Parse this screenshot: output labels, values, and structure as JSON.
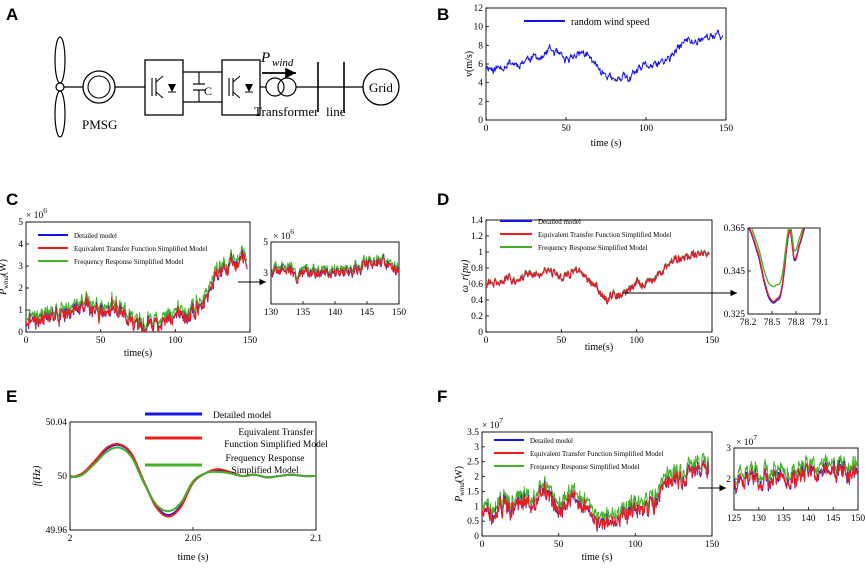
{
  "figure": {
    "colors": {
      "blue": "#1414e6",
      "red": "#ee1c1c",
      "green": "#44b02a",
      "black": "#000000"
    }
  },
  "panel_a": {
    "label": "A",
    "generator_label": "PMSG",
    "capacitor_label": "C",
    "power_symbol": "P",
    "power_subscript": "wind",
    "transformer_label": "Transformer",
    "line_label": "line",
    "grid_label": "Grid"
  },
  "chart_data": [
    {
      "id": "B",
      "label": "B",
      "type": "line",
      "title": "",
      "xlabel": "time (s)",
      "ylabel": "v(m/s)",
      "xlim": [
        0,
        150
      ],
      "ylim": [
        0,
        12
      ],
      "xticks": [
        "0",
        "50",
        "100",
        "150"
      ],
      "yticks": [
        "0",
        "2",
        "4",
        "6",
        "8",
        "10",
        "12"
      ],
      "legend": [
        "random wind speed"
      ],
      "series": [
        {
          "name": "random wind speed",
          "color": "blue",
          "x": [
            0,
            5,
            10,
            15,
            20,
            25,
            30,
            35,
            40,
            45,
            50,
            55,
            60,
            65,
            70,
            75,
            80,
            85,
            90,
            95,
            100,
            105,
            110,
            115,
            120,
            125,
            130,
            135,
            140,
            145,
            148
          ],
          "y": [
            5.8,
            5.4,
            5.7,
            6.2,
            5.9,
            6.5,
            6.8,
            6.6,
            7.6,
            7.0,
            6.3,
            6.9,
            7.3,
            6.6,
            5.6,
            4.9,
            4.1,
            4.6,
            4.4,
            5.3,
            5.9,
            5.7,
            6.2,
            6.6,
            7.6,
            8.6,
            8.3,
            8.8,
            9.0,
            9.1,
            8.8
          ],
          "noise": 0.45
        }
      ]
    },
    {
      "id": "C",
      "label": "C",
      "type": "line",
      "xlabel": "time(s)",
      "ylabel": "P_wind(W)",
      "xlim": [
        0,
        150
      ],
      "ylim": [
        0,
        5
      ],
      "y_exponent": "× 10^6",
      "xticks": [
        "0",
        "50",
        "100",
        "150"
      ],
      "yticks": [
        "0",
        "1",
        "2",
        "3",
        "4",
        "5"
      ],
      "legend": [
        "Detailed model",
        "Equivalent Transfer Function Simplified Model",
        "Frequency Response Simplified Model"
      ],
      "series": [
        {
          "name": "Detailed model",
          "color": "blue",
          "offset": 0
        },
        {
          "name": "Equivalent Transfer Function Simplified Model",
          "color": "red",
          "offset": 0
        },
        {
          "name": "Frequency Response Simplified Model",
          "color": "green",
          "offset": 0.25
        }
      ],
      "x": [
        0,
        5,
        10,
        15,
        20,
        25,
        30,
        35,
        40,
        45,
        50,
        55,
        60,
        65,
        70,
        75,
        80,
        85,
        90,
        95,
        100,
        105,
        110,
        115,
        120,
        125,
        130,
        135,
        140,
        145,
        148
      ],
      "base": [
        0.6,
        0.5,
        0.6,
        0.8,
        0.7,
        0.9,
        1.0,
        0.9,
        1.4,
        1.0,
        0.7,
        0.9,
        1.1,
        0.8,
        0.5,
        0.35,
        0.2,
        0.3,
        0.3,
        0.45,
        0.7,
        0.6,
        0.8,
        1.0,
        1.4,
        2.4,
        2.8,
        3.0,
        3.2,
        3.4,
        3.2
      ],
      "noise": 0.35,
      "inset": {
        "xlim": [
          130,
          150
        ],
        "ylim": [
          1,
          5
        ],
        "y_exponent": "× 10^6",
        "xticks": [
          "130",
          "135",
          "140",
          "145",
          "150"
        ],
        "yticks": [
          "3",
          "5"
        ],
        "x": [
          130,
          132,
          134,
          136,
          138,
          140,
          142,
          144,
          146,
          148,
          150
        ],
        "base": [
          2.9,
          3.3,
          2.8,
          3.0,
          3.1,
          3.0,
          3.1,
          3.3,
          3.7,
          3.5,
          3.1
        ],
        "noise": 0.35
      }
    },
    {
      "id": "D",
      "label": "D",
      "type": "line",
      "xlabel": "time(s)",
      "ylabel": "ω_r(pu)",
      "xlim": [
        0,
        150
      ],
      "ylim": [
        0,
        1.4
      ],
      "xticks": [
        "0",
        "50",
        "100",
        "150"
      ],
      "yticks": [
        "0",
        "0.2",
        "0.4",
        "0.6",
        "0.8",
        "1",
        "1.2",
        "1.4"
      ],
      "legend": [
        "Detailed model",
        "Equivalent Transfer Function Simplified Model",
        "Frequency Response Simplified Model"
      ],
      "series": [
        {
          "name": "Detailed model",
          "color": "blue",
          "offset": 0
        },
        {
          "name": "Equivalent Transfer Function Simplified Model",
          "color": "red",
          "offset": 0
        },
        {
          "name": "Frequency Response Simplified Model",
          "color": "green",
          "offset": 0.01
        }
      ],
      "x": [
        0,
        5,
        10,
        15,
        20,
        25,
        30,
        35,
        40,
        45,
        50,
        55,
        60,
        65,
        70,
        75,
        80,
        85,
        90,
        95,
        100,
        105,
        110,
        115,
        120,
        125,
        130,
        135,
        140,
        145,
        148
      ],
      "base": [
        0.62,
        0.6,
        0.63,
        0.67,
        0.65,
        0.7,
        0.73,
        0.71,
        0.8,
        0.74,
        0.68,
        0.72,
        0.76,
        0.7,
        0.6,
        0.53,
        0.4,
        0.47,
        0.45,
        0.54,
        0.62,
        0.6,
        0.66,
        0.7,
        0.82,
        0.92,
        0.9,
        0.95,
        0.98,
        1.0,
        0.98
      ],
      "noise": 0.05,
      "inset": {
        "xlim": [
          78.2,
          79.1
        ],
        "ylim": [
          0.325,
          0.365
        ],
        "xticks": [
          "78.2",
          "78.5",
          "78.8",
          "79.1"
        ],
        "yticks": [
          "0.325",
          "0.345",
          "0.365"
        ],
        "series": [
          {
            "name": "Detailed model",
            "color": "blue",
            "x": [
              78.2,
              78.33,
              78.43,
              78.5,
              78.55,
              78.62,
              78.72,
              78.78,
              78.84,
              78.92,
              79.0
            ],
            "y": [
              0.3655,
              0.352,
              0.336,
              0.3305,
              0.331,
              0.336,
              0.3635,
              0.35,
              0.3565,
              0.367,
              0.38
            ]
          },
          {
            "name": "Equivalent Transfer Function Simplified Model",
            "color": "red",
            "x": [
              78.2,
              78.33,
              78.43,
              78.5,
              78.55,
              78.62,
              78.72,
              78.78,
              78.84,
              78.92,
              79.0
            ],
            "y": [
              0.366,
              0.353,
              0.337,
              0.3312,
              0.3318,
              0.337,
              0.364,
              0.3508,
              0.3572,
              0.368,
              0.38
            ]
          },
          {
            "name": "Frequency Response Simplified Model",
            "color": "green",
            "x": [
              78.2,
              78.33,
              78.43,
              78.5,
              78.55,
              78.62,
              78.72,
              78.78,
              78.84,
              78.92,
              79.0
            ],
            "y": [
              0.368,
              0.356,
              0.342,
              0.338,
              0.3385,
              0.342,
              0.3665,
              0.3545,
              0.36,
              0.37,
              0.382
            ]
          }
        ]
      }
    },
    {
      "id": "E",
      "label": "E",
      "type": "line",
      "xlabel": "time (s)",
      "ylabel": "f(Hz)",
      "xlim": [
        2,
        2.1
      ],
      "ylim": [
        49.96,
        50.04
      ],
      "xticks": [
        "2",
        "2.05",
        "2.1"
      ],
      "yticks": [
        "49.96",
        "50",
        "50.04"
      ],
      "legend": [
        "Detailed model",
        "Equivalent Transfer",
        "Function Simplified Model",
        "Frequency Response",
        "Simplified Model"
      ],
      "series": [
        {
          "name": "Detailed model",
          "color": "blue",
          "x": [
            2.0,
            2.005,
            2.01,
            2.015,
            2.02,
            2.025,
            2.03,
            2.035,
            2.04,
            2.045,
            2.05,
            2.055,
            2.06,
            2.065,
            2.07,
            2.075,
            2.08,
            2.085,
            2.09,
            2.095,
            2.1
          ],
          "y": [
            49.999,
            50.001,
            50.01,
            50.02,
            50.023,
            50.016,
            49.996,
            49.978,
            49.971,
            49.978,
            49.995,
            50.002,
            50.004,
            50.003,
            50.0,
            50.001,
            49.999,
            50.0,
            50.001,
            50.0,
            50.0
          ]
        },
        {
          "name": "Equivalent Transfer Function Simplified Model",
          "color": "red",
          "x": [
            2.0,
            2.005,
            2.01,
            2.015,
            2.02,
            2.025,
            2.03,
            2.035,
            2.04,
            2.045,
            2.05,
            2.055,
            2.06,
            2.065,
            2.07,
            2.075,
            2.08,
            2.085,
            2.09,
            2.095,
            2.1
          ],
          "y": [
            49.999,
            50.002,
            50.011,
            50.021,
            50.0235,
            50.0165,
            49.996,
            49.977,
            49.97,
            49.977,
            49.995,
            50.002,
            50.005,
            50.003,
            50.0,
            50.001,
            49.999,
            50.0,
            50.001,
            50.0,
            50.0
          ]
        },
        {
          "name": "Frequency Response Simplified Model",
          "color": "green",
          "x": [
            2.0,
            2.005,
            2.01,
            2.015,
            2.02,
            2.025,
            2.03,
            2.035,
            2.04,
            2.045,
            2.05,
            2.055,
            2.06,
            2.065,
            2.07,
            2.075,
            2.08,
            2.085,
            2.09,
            2.095,
            2.1
          ],
          "y": [
            49.999,
            50.001,
            50.009,
            50.018,
            50.021,
            50.014,
            49.995,
            49.979,
            49.974,
            49.98,
            49.996,
            50.002,
            50.003,
            50.002,
            50.0,
            50.001,
            49.999,
            50.0,
            50.001,
            50.0,
            50.0
          ]
        }
      ]
    },
    {
      "id": "F",
      "label": "F",
      "type": "line",
      "xlabel": "time (s)",
      "ylabel": "P_wind(W)",
      "xlim": [
        0,
        150
      ],
      "ylim": [
        0,
        3.5
      ],
      "y_exponent": "× 10^7",
      "xticks": [
        "0",
        "50",
        "100",
        "150"
      ],
      "yticks": [
        "0",
        "0.5",
        "1",
        "1.5",
        "2",
        "2.5",
        "3",
        "3.5"
      ],
      "legend": [
        "Detailed model",
        "Equivalent Transfer Function Simplified Model",
        "Frequency Response Simplified Model"
      ],
      "series": [
        {
          "name": "Detailed model",
          "color": "blue",
          "offset": 0
        },
        {
          "name": "Equivalent Transfer Function Simplified Model",
          "color": "red",
          "offset": 0
        },
        {
          "name": "Frequency Response Simplified Model",
          "color": "green",
          "offset": 0.25
        }
      ],
      "x": [
        0,
        5,
        10,
        15,
        20,
        25,
        30,
        35,
        40,
        45,
        50,
        55,
        60,
        65,
        70,
        75,
        80,
        85,
        90,
        95,
        100,
        105,
        110,
        115,
        120,
        125,
        130,
        135,
        140,
        145,
        148
      ],
      "base": [
        0.8,
        0.7,
        0.8,
        1.0,
        0.9,
        1.1,
        1.2,
        1.1,
        1.6,
        1.2,
        0.9,
        1.1,
        1.3,
        1.0,
        0.7,
        0.55,
        0.4,
        0.5,
        0.5,
        0.65,
        0.9,
        0.8,
        1.0,
        1.2,
        1.6,
        2.0,
        1.9,
        2.1,
        2.2,
        2.4,
        2.2
      ],
      "noise": 0.3,
      "inset": {
        "xlim": [
          125,
          150
        ],
        "ylim": [
          1,
          3
        ],
        "y_exponent": "× 10^7",
        "xticks": [
          "125",
          "130",
          "135",
          "140",
          "145",
          "150"
        ],
        "yticks": [
          "2",
          "3"
        ],
        "x": [
          125,
          127.5,
          130,
          132.5,
          135,
          137.5,
          140,
          142.5,
          145,
          147.5,
          150
        ],
        "base": [
          1.95,
          2.05,
          1.9,
          2.0,
          2.1,
          2.0,
          2.15,
          2.2,
          2.25,
          2.15,
          2.05
        ],
        "noise": 0.3
      }
    }
  ]
}
